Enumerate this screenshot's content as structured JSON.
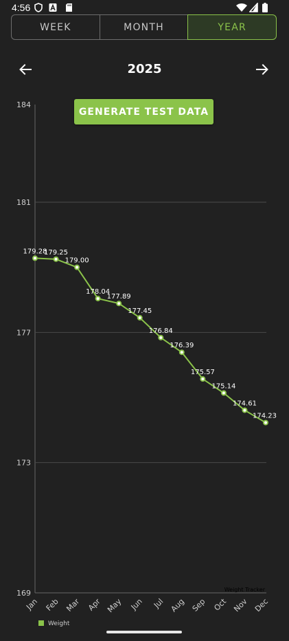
{
  "status_bar": {
    "time": "4:56"
  },
  "tabs": [
    {
      "label": "WEEK",
      "selected": false
    },
    {
      "label": "MONTH",
      "selected": false
    },
    {
      "label": "YEAR",
      "selected": true
    }
  ],
  "nav": {
    "title": "2025",
    "prev_icon": "arrow-left-icon",
    "next_icon": "arrow-right-icon"
  },
  "generate_button": {
    "label": "GENERATE TEST DATA"
  },
  "colors": {
    "accent": "#8bc34a",
    "background": "#212121",
    "grid": "#4a4a4a"
  },
  "chart_data": {
    "type": "line",
    "categories": [
      "Jan",
      "Feb",
      "Mar",
      "Apr",
      "May",
      "Jun",
      "Jul",
      "Aug",
      "Sep",
      "Oct",
      "Nov",
      "Dec"
    ],
    "series": [
      {
        "name": "Weight",
        "values": [
          179.28,
          179.25,
          179.0,
          178.04,
          177.89,
          177.45,
          176.84,
          176.39,
          175.57,
          175.14,
          174.61,
          174.23
        ],
        "labels": [
          "179.28",
          "179.25",
          "179.00",
          "178.04",
          "177.89",
          "177.45",
          "176.84",
          "176.39",
          "175.57",
          "175.14",
          "174.61",
          "174.23"
        ]
      }
    ],
    "y_ticks": [
      169,
      173,
      177,
      181,
      184
    ],
    "y_tick_labels": [
      "169",
      "173",
      "177",
      "181",
      "184"
    ],
    "ylim": [
      169,
      184
    ],
    "grid": true,
    "legend": "bottom-left",
    "description": "Weight Tracker"
  }
}
